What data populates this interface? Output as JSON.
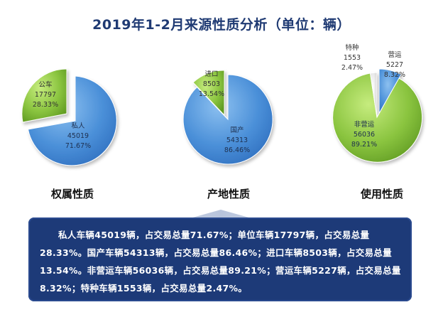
{
  "title": "2019年1-2月来源性质分析（单位：辆）",
  "chart_data": [
    {
      "type": "pie",
      "title": "权属性质",
      "slices": [
        {
          "name": "私人",
          "value": 45019,
          "percent": "71.67%",
          "color": "#4a8fd8"
        },
        {
          "name": "公车",
          "value": 17797,
          "percent": "28.33%",
          "color": "#8ac43f"
        }
      ]
    },
    {
      "type": "pie",
      "title": "产地性质",
      "slices": [
        {
          "name": "国产",
          "value": 54313,
          "percent": "86.46%",
          "color": "#4a8fd8"
        },
        {
          "name": "进口",
          "value": 8503,
          "percent": "13.54%",
          "color": "#8ac43f"
        }
      ]
    },
    {
      "type": "pie",
      "title": "使用性质",
      "slices": [
        {
          "name": "营运",
          "value": 5227,
          "percent": "8.32%",
          "color": "#4a8fd8"
        },
        {
          "name": "非营运",
          "value": 56036,
          "percent": "89.21%",
          "color": "#8ac43f"
        },
        {
          "name": "特种",
          "value": 1553,
          "percent": "2.47%",
          "color": "#e0e0e0"
        }
      ]
    }
  ],
  "summary": "私人车辆45019辆，占交易总量71.67%；单位车辆17797辆，占交易总量28.33%。国产车辆54313辆，占交易总量86.46%；进口车辆8503辆，占交易总量13.54%。非营运车辆56036辆，占交易总量89.21%；营运车辆5227辆，占交易总量8.32%；特种车辆1553辆，占交易总量2.47%。"
}
